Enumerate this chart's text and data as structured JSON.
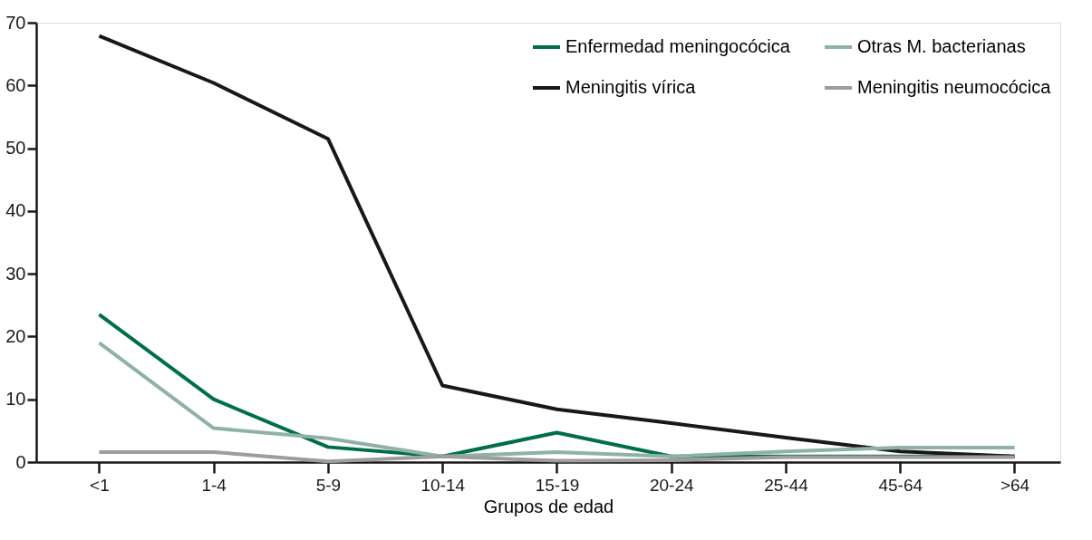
{
  "chart_data": {
    "type": "line",
    "xlabel": "Grupos de edad",
    "categories": [
      "<1",
      "1-4",
      "5-9",
      "10-14",
      "15-19",
      "20-24",
      "25-44",
      "45-64",
      ">64"
    ],
    "series": [
      {
        "name": "Enfermedad meningocócica",
        "color": "#006e4b",
        "values": [
          23.5,
          10,
          2.4,
          0.9,
          4.7,
          0.9,
          0.9,
          0.9,
          0.9
        ]
      },
      {
        "name": "Meningitis vírica",
        "color": "#1a171b",
        "values": [
          67.9,
          60.4,
          51.5,
          12.2,
          8.4,
          6.2,
          3.9,
          1.7,
          0.9
        ]
      },
      {
        "name": "Otras M. bacterianas",
        "color": "#8fb3a2",
        "values": [
          19,
          5.4,
          3.8,
          0.9,
          1.6,
          0.9,
          1.7,
          2.3,
          2.3
        ]
      },
      {
        "name": "Meningitis neumocócica",
        "color": "#9d9d9e",
        "values": [
          1.6,
          1.6,
          0.1,
          0.9,
          0.2,
          0.3,
          0.8,
          0.8,
          0.8
        ]
      }
    ],
    "ylim": [
      0,
      70
    ],
    "yticks": [
      0,
      10,
      20,
      30,
      40,
      50,
      60,
      70
    ],
    "grid": false,
    "legend": "top right",
    "marker": "none",
    "line_style": "solid"
  }
}
